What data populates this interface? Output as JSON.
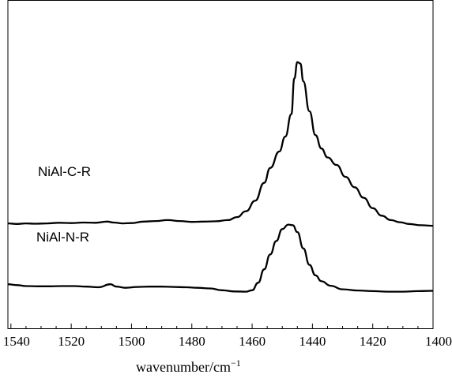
{
  "chart_data": {
    "type": "line",
    "xlabel": "wavenumber/cm",
    "xlabel_superscript": "−1",
    "xlim": [
      1541,
      1400
    ],
    "x_reversed": true,
    "x_ticks": [
      1540,
      1520,
      1500,
      1480,
      1460,
      1440,
      1420,
      1400
    ],
    "y_ticks_shown": false,
    "ylim": [
      0,
      100
    ],
    "grid": false,
    "legend": "none",
    "line_color": "#000000",
    "series": [
      {
        "name": "NiAl-C-R",
        "points": [
          [
            1541,
            30.4
          ],
          [
            1538,
            30.2
          ],
          [
            1535,
            30.4
          ],
          [
            1532,
            30.3
          ],
          [
            1528,
            30.4
          ],
          [
            1524,
            30.6
          ],
          [
            1520,
            30.5
          ],
          [
            1516,
            30.7
          ],
          [
            1512,
            30.6
          ],
          [
            1508,
            31.0
          ],
          [
            1506,
            30.7
          ],
          [
            1503,
            30.4
          ],
          [
            1500,
            30.5
          ],
          [
            1496,
            31.0
          ],
          [
            1492,
            31.2
          ],
          [
            1488,
            31.5
          ],
          [
            1484,
            31.2
          ],
          [
            1480,
            30.9
          ],
          [
            1476,
            31.0
          ],
          [
            1472,
            31.1
          ],
          [
            1468,
            31.5
          ],
          [
            1465,
            32.5
          ],
          [
            1462,
            34.5
          ],
          [
            1459,
            38.0
          ],
          [
            1456,
            44.0
          ],
          [
            1454,
            49.0
          ],
          [
            1451,
            54.5
          ],
          [
            1449,
            59.5
          ],
          [
            1447,
            67.0
          ],
          [
            1446,
            79.0
          ],
          [
            1445,
            84.5
          ],
          [
            1444,
            84.0
          ],
          [
            1443,
            78.0
          ],
          [
            1441,
            68.0
          ],
          [
            1439,
            60.0
          ],
          [
            1437,
            55.5
          ],
          [
            1435,
            52.5
          ],
          [
            1432,
            50.0
          ],
          [
            1429,
            46.0
          ],
          [
            1426,
            42.5
          ],
          [
            1423,
            39.0
          ],
          [
            1420,
            35.5
          ],
          [
            1417,
            33.0
          ],
          [
            1414,
            31.5
          ],
          [
            1411,
            30.8
          ],
          [
            1408,
            30.2
          ],
          [
            1404,
            29.8
          ],
          [
            1400,
            29.6
          ]
        ]
      },
      {
        "name": "NiAl-N-R",
        "points": [
          [
            1541,
            10.0
          ],
          [
            1538,
            9.7
          ],
          [
            1535,
            9.4
          ],
          [
            1531,
            9.3
          ],
          [
            1527,
            9.3
          ],
          [
            1523,
            9.4
          ],
          [
            1519,
            9.4
          ],
          [
            1515,
            9.2
          ],
          [
            1511,
            9.0
          ],
          [
            1507,
            10.0
          ],
          [
            1505,
            9.2
          ],
          [
            1502,
            8.8
          ],
          [
            1498,
            9.1
          ],
          [
            1494,
            9.2
          ],
          [
            1490,
            9.2
          ],
          [
            1486,
            9.1
          ],
          [
            1482,
            9.0
          ],
          [
            1478,
            8.8
          ],
          [
            1474,
            8.6
          ],
          [
            1470,
            8.0
          ],
          [
            1466,
            7.6
          ],
          [
            1462,
            7.5
          ],
          [
            1460,
            8.0
          ],
          [
            1458,
            10.5
          ],
          [
            1456,
            15.0
          ],
          [
            1454,
            20.0
          ],
          [
            1452,
            24.5
          ],
          [
            1450,
            28.5
          ],
          [
            1448,
            30.0
          ],
          [
            1446.5,
            29.8
          ],
          [
            1445,
            27.5
          ],
          [
            1443,
            22.0
          ],
          [
            1441,
            16.5
          ],
          [
            1439,
            13.0
          ],
          [
            1437,
            11.0
          ],
          [
            1434,
            9.5
          ],
          [
            1430,
            8.3
          ],
          [
            1425,
            7.9
          ],
          [
            1420,
            7.7
          ],
          [
            1415,
            7.5
          ],
          [
            1410,
            7.5
          ],
          [
            1405,
            7.7
          ],
          [
            1400,
            7.8
          ]
        ]
      }
    ]
  }
}
